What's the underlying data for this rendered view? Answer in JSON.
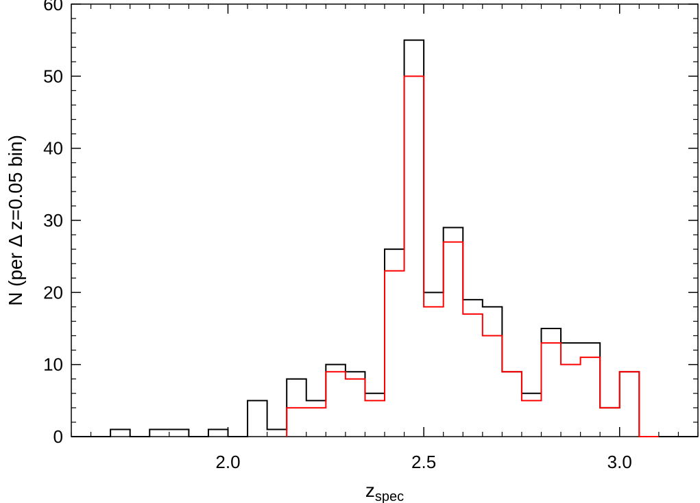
{
  "chart_data": {
    "type": "histogram",
    "title": "",
    "xlabel": "z",
    "xlabel_subscript": "spec",
    "ylabel": "N (per Δ z=0.05 bin)",
    "xlim": [
      1.6,
      3.2
    ],
    "ylim": [
      0,
      60
    ],
    "xticks": [
      2.0,
      2.5,
      3.0
    ],
    "xtick_labels": [
      "2.0",
      "2.5",
      "3.0"
    ],
    "yticks": [
      0,
      10,
      20,
      30,
      40,
      50,
      60
    ],
    "ytick_labels": [
      "0",
      "10",
      "20",
      "30",
      "40",
      "50",
      "60"
    ],
    "grid": false,
    "legend": "none",
    "bin_width": 0.05,
    "series": [
      {
        "color": "#000000",
        "bin_starts": [
          1.6,
          1.65,
          1.7,
          1.75,
          1.8,
          1.85,
          1.9,
          1.95,
          2.0,
          2.05,
          2.1,
          2.15,
          2.2,
          2.25,
          2.3,
          2.35,
          2.4,
          2.45,
          2.5,
          2.55,
          2.6,
          2.65,
          2.7,
          2.75,
          2.8,
          2.85,
          2.9,
          2.95,
          3.0,
          3.05,
          3.1,
          3.15
        ],
        "values": [
          0,
          0,
          1,
          0,
          1,
          1,
          0,
          1,
          0,
          5,
          1,
          8,
          5,
          10,
          9,
          6,
          26,
          55,
          20,
          29,
          19,
          18,
          9,
          6,
          15,
          13,
          13,
          4,
          9,
          0,
          0,
          0
        ]
      },
      {
        "color": "#ff0000",
        "bin_starts": [
          2.15,
          2.2,
          2.25,
          2.3,
          2.35,
          2.4,
          2.45,
          2.5,
          2.55,
          2.6,
          2.65,
          2.7,
          2.75,
          2.8,
          2.85,
          2.9,
          2.95,
          3.0,
          3.05
        ],
        "values": [
          4,
          4,
          9,
          8,
          5,
          23,
          50,
          18,
          27,
          17,
          14,
          9,
          5,
          13,
          10,
          11,
          4,
          9,
          0
        ]
      }
    ]
  }
}
